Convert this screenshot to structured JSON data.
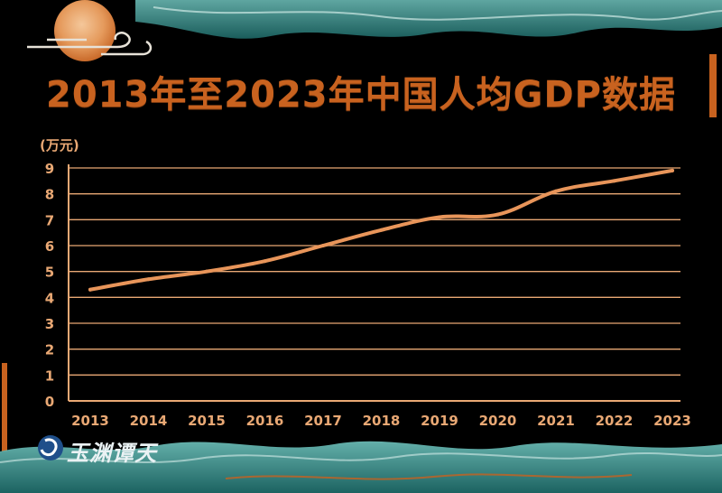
{
  "title": "2013年至2023年中国人均GDP数据",
  "logo": "玉渊谭天",
  "colors": {
    "accent": "#c8621f",
    "line": "#e8955a",
    "grid": "#e9a874",
    "teal": "#2f9a96"
  },
  "chart_data": {
    "type": "line",
    "title": "2013年至2023年中国人均GDP数据",
    "unit_label": "(万元)",
    "xlabel": "",
    "ylabel": "",
    "categories": [
      "2013",
      "2014",
      "2015",
      "2016",
      "2017",
      "2018",
      "2019",
      "2020",
      "2021",
      "2022",
      "2023"
    ],
    "series": [
      {
        "values": [
          4.3,
          4.7,
          5.0,
          5.4,
          6.0,
          6.6,
          7.1,
          7.2,
          8.1,
          8.5,
          8.9
        ]
      }
    ],
    "y_ticks": [
      "0",
      "1",
      "2",
      "3",
      "4",
      "5",
      "6",
      "7",
      "8",
      "9"
    ],
    "ylim": [
      0,
      9
    ],
    "grid": true
  }
}
